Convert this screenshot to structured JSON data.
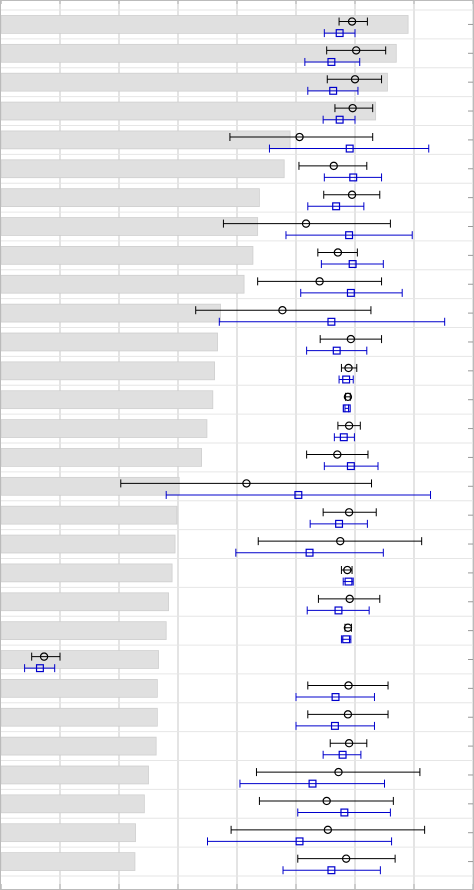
{
  "chart_data": {
    "type": "bar",
    "title": "",
    "xlabel": "",
    "ylabel": "",
    "orientation": "horizontal",
    "xlim": [
      0,
      8
    ],
    "grid": true,
    "grid_color": "#c8c8c8",
    "bar_color": "#e0e0e0",
    "bar_edge_color": "#cfcfcf",
    "series": [
      {
        "name": "",
        "marker": "circle",
        "color": "#000000"
      },
      {
        "name": "",
        "marker": "square",
        "color": "#0000cc"
      }
    ],
    "rows": [
      {
        "bar": 6.9,
        "a": {
          "v": 5.95,
          "lo": 5.73,
          "hi": 6.21
        },
        "b": {
          "v": 5.74,
          "lo": 5.48,
          "hi": 6.0
        }
      },
      {
        "bar": 6.7,
        "a": {
          "v": 6.02,
          "lo": 5.52,
          "hi": 6.52
        },
        "b": {
          "v": 5.6,
          "lo": 5.15,
          "hi": 6.08
        }
      },
      {
        "bar": 6.55,
        "a": {
          "v": 6.0,
          "lo": 5.53,
          "hi": 6.45
        },
        "b": {
          "v": 5.63,
          "lo": 5.2,
          "hi": 6.05
        }
      },
      {
        "bar": 6.35,
        "a": {
          "v": 5.96,
          "lo": 5.66,
          "hi": 6.3
        },
        "b": {
          "v": 5.74,
          "lo": 5.46,
          "hi": 6.0
        }
      },
      {
        "bar": 4.9,
        "a": {
          "v": 5.06,
          "lo": 3.88,
          "hi": 6.3
        },
        "b": {
          "v": 5.91,
          "lo": 4.55,
          "hi": 7.25
        }
      },
      {
        "bar": 4.8,
        "a": {
          "v": 5.64,
          "lo": 5.05,
          "hi": 6.2
        },
        "b": {
          "v": 5.97,
          "lo": 5.48,
          "hi": 6.45
        }
      },
      {
        "bar": 4.38,
        "a": {
          "v": 5.95,
          "lo": 5.47,
          "hi": 6.42
        },
        "b": {
          "v": 5.68,
          "lo": 5.2,
          "hi": 6.15
        }
      },
      {
        "bar": 4.35,
        "a": {
          "v": 5.17,
          "lo": 3.77,
          "hi": 6.6
        },
        "b": {
          "v": 5.9,
          "lo": 4.83,
          "hi": 6.97
        }
      },
      {
        "bar": 4.27,
        "a": {
          "v": 5.71,
          "lo": 5.37,
          "hi": 6.04
        },
        "b": {
          "v": 5.96,
          "lo": 5.43,
          "hi": 6.48
        }
      },
      {
        "bar": 4.12,
        "a": {
          "v": 5.4,
          "lo": 4.35,
          "hi": 6.45
        },
        "b": {
          "v": 5.93,
          "lo": 5.08,
          "hi": 6.8
        }
      },
      {
        "bar": 3.72,
        "a": {
          "v": 4.77,
          "lo": 3.3,
          "hi": 6.27
        },
        "b": {
          "v": 5.6,
          "lo": 3.7,
          "hi": 7.52
        }
      },
      {
        "bar": 3.67,
        "a": {
          "v": 5.93,
          "lo": 5.41,
          "hi": 6.45
        },
        "b": {
          "v": 5.69,
          "lo": 5.18,
          "hi": 6.2
        }
      },
      {
        "bar": 3.62,
        "a": {
          "v": 5.89,
          "lo": 5.77,
          "hi": 6.03
        },
        "b": {
          "v": 5.85,
          "lo": 5.73,
          "hi": 5.97
        }
      },
      {
        "bar": 3.59,
        "a": {
          "v": 5.88,
          "lo": 5.84,
          "hi": 5.92
        },
        "b": {
          "v": 5.86,
          "lo": 5.83,
          "hi": 5.89
        }
      },
      {
        "bar": 3.49,
        "a": {
          "v": 5.9,
          "lo": 5.71,
          "hi": 6.09
        },
        "b": {
          "v": 5.81,
          "lo": 5.65,
          "hi": 5.99
        }
      },
      {
        "bar": 3.4,
        "a": {
          "v": 5.7,
          "lo": 5.18,
          "hi": 6.22
        },
        "b": {
          "v": 5.93,
          "lo": 5.48,
          "hi": 6.39
        }
      },
      {
        "bar": 3.02,
        "a": {
          "v": 4.16,
          "lo": 2.03,
          "hi": 6.28
        },
        "b": {
          "v": 5.04,
          "lo": 2.8,
          "hi": 7.28
        }
      },
      {
        "bar": 2.98,
        "a": {
          "v": 5.9,
          "lo": 5.46,
          "hi": 6.36
        },
        "b": {
          "v": 5.73,
          "lo": 5.24,
          "hi": 6.21
        }
      },
      {
        "bar": 2.95,
        "a": {
          "v": 5.75,
          "lo": 4.36,
          "hi": 7.13
        },
        "b": {
          "v": 5.23,
          "lo": 3.98,
          "hi": 6.48
        }
      },
      {
        "bar": 2.9,
        "a": {
          "v": 5.87,
          "lo": 5.77,
          "hi": 5.95
        },
        "b": {
          "v": 5.89,
          "lo": 5.8,
          "hi": 5.97
        }
      },
      {
        "bar": 2.84,
        "a": {
          "v": 5.91,
          "lo": 5.38,
          "hi": 6.42
        },
        "b": {
          "v": 5.72,
          "lo": 5.19,
          "hi": 6.24
        }
      },
      {
        "bar": 2.8,
        "a": {
          "v": 5.88,
          "lo": 5.83,
          "hi": 5.94
        },
        "b": {
          "v": 5.85,
          "lo": 5.77,
          "hi": 5.93
        }
      },
      {
        "bar": 2.67,
        "a": {
          "v": 0.73,
          "lo": 0.52,
          "hi": 1.0
        },
        "b": {
          "v": 0.66,
          "lo": 0.4,
          "hi": 0.91
        }
      },
      {
        "bar": 2.65,
        "a": {
          "v": 5.89,
          "lo": 5.2,
          "hi": 6.56
        },
        "b": {
          "v": 5.67,
          "lo": 5.0,
          "hi": 6.33
        }
      },
      {
        "bar": 2.65,
        "a": {
          "v": 5.88,
          "lo": 5.2,
          "hi": 6.56
        },
        "b": {
          "v": 5.66,
          "lo": 5.0,
          "hi": 6.33
        }
      },
      {
        "bar": 2.63,
        "a": {
          "v": 5.9,
          "lo": 5.58,
          "hi": 6.2
        },
        "b": {
          "v": 5.79,
          "lo": 5.46,
          "hi": 6.1
        }
      },
      {
        "bar": 2.5,
        "a": {
          "v": 5.72,
          "lo": 4.33,
          "hi": 7.1
        },
        "b": {
          "v": 5.28,
          "lo": 4.05,
          "hi": 6.5
        }
      },
      {
        "bar": 2.43,
        "a": {
          "v": 5.52,
          "lo": 4.38,
          "hi": 6.65
        },
        "b": {
          "v": 5.82,
          "lo": 5.03,
          "hi": 6.6
        }
      },
      {
        "bar": 2.28,
        "a": {
          "v": 5.54,
          "lo": 3.9,
          "hi": 7.18
        },
        "b": {
          "v": 5.06,
          "lo": 3.5,
          "hi": 6.62
        }
      },
      {
        "bar": 2.27,
        "a": {
          "v": 5.85,
          "lo": 5.03,
          "hi": 6.68
        },
        "b": {
          "v": 5.6,
          "lo": 4.78,
          "hi": 6.43
        }
      }
    ]
  }
}
